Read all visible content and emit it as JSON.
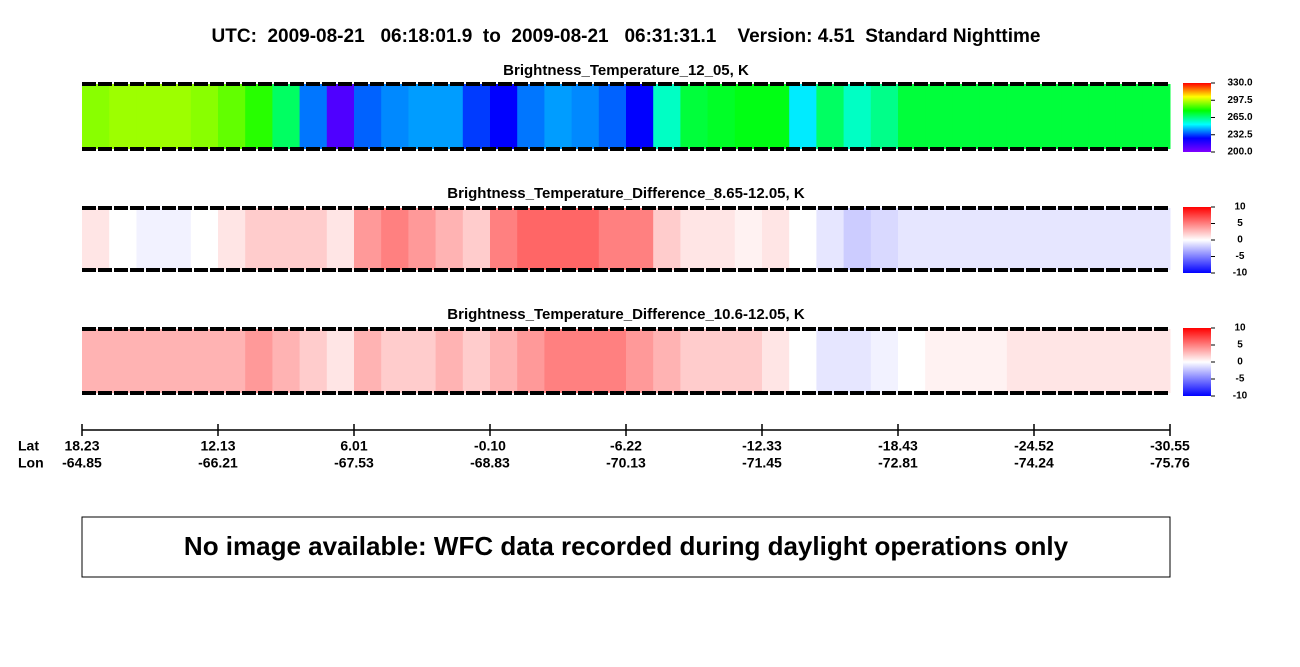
{
  "title": "UTC:  2009-08-21   06:18:01.9  to  2009-08-21   06:31:31.1    Version: 4.51  Standard Nighttime",
  "chart_data": [
    {
      "type": "heatmap",
      "title": "Brightness_Temperature_12_05, K",
      "values": [
        292,
        294,
        294,
        294,
        292,
        288,
        282,
        268,
        238,
        210,
        236,
        240,
        242,
        242,
        232,
        226,
        238,
        242,
        240,
        236,
        226,
        258,
        272,
        274,
        276,
        276,
        250,
        268,
        258,
        264,
        272,
        272,
        272,
        272,
        272,
        272,
        272,
        272,
        272,
        272
      ],
      "colors": [
        "#8000ff",
        "#0000ff",
        "#00ffff",
        "#00ff00",
        "#ffff00",
        "#ff0000"
      ],
      "zlim": [
        200,
        330
      ],
      "zticks": [
        {
          "value": 200,
          "label": "200.0"
        },
        {
          "value": 232.5,
          "label": "232.5"
        },
        {
          "value": 265,
          "label": "265.0"
        },
        {
          "value": 297.5,
          "label": "297.5"
        },
        {
          "value": 330,
          "label": "330.0"
        }
      ]
    },
    {
      "type": "heatmap",
      "title": "Brightness_Temperature_Difference_8.65-12.05, K",
      "values": [
        1,
        0,
        -0.5,
        -0.5,
        0,
        1,
        2,
        2,
        2,
        1,
        4,
        5,
        4,
        3,
        2,
        5,
        6,
        6,
        6,
        5,
        5,
        2,
        1,
        1,
        0.5,
        1,
        0,
        -1,
        -2,
        -1.5,
        -1,
        -1,
        -1,
        -1,
        -1,
        -1,
        -1,
        -1,
        -1,
        -1
      ],
      "colors": [
        "#0000ff",
        "#ffffff",
        "#ff0000"
      ],
      "zlim": [
        -10,
        10
      ],
      "zticks": [
        -10,
        -5,
        0,
        5,
        10
      ]
    },
    {
      "type": "heatmap",
      "title": "Brightness_Temperature_Difference_10.6-12.05, K",
      "values": [
        3,
        3,
        3,
        3,
        3,
        3,
        4,
        3,
        2,
        1,
        3,
        2,
        2,
        3,
        2,
        3,
        4,
        5,
        5,
        5,
        4,
        3,
        2,
        2,
        2,
        1,
        0,
        -1,
        -1,
        -0.5,
        0,
        0.5,
        0.5,
        0.5,
        1,
        1,
        1,
        1,
        1,
        1
      ],
      "colors": [
        "#0000ff",
        "#ffffff",
        "#ff0000"
      ],
      "zlim": [
        -10,
        10
      ],
      "zticks": [
        -10,
        -5,
        0,
        5,
        10
      ]
    }
  ],
  "axis": {
    "lat_label": "Lat",
    "lon_label": "Lon",
    "lat": [
      "18.23",
      "12.13",
      "6.01",
      "-0.10",
      "-6.22",
      "-12.33",
      "-18.43",
      "-24.52",
      "-30.55"
    ],
    "lon": [
      "-64.85",
      "-66.21",
      "-67.53",
      "-68.83",
      "-70.13",
      "-71.45",
      "-72.81",
      "-74.24",
      "-75.76"
    ]
  },
  "notice": "No image available: WFC data recorded during daylight operations only"
}
